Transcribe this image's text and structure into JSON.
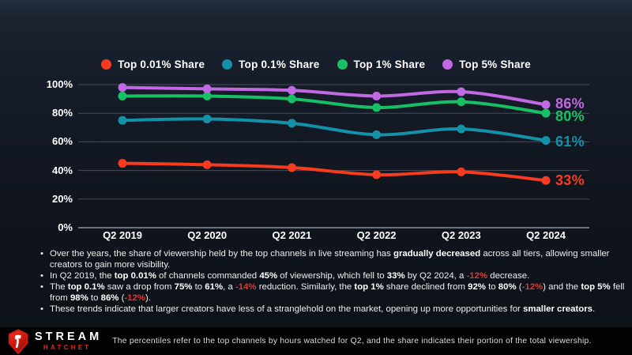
{
  "colors": {
    "grid": "#454d59",
    "axis_bottom": "#8a9099",
    "note_red": "#e8352b",
    "logo_red": "#e8281e",
    "background_top": "#232c3b",
    "background_bottom": "#0c1017",
    "footer_bar": "#020202"
  },
  "chart_data": {
    "type": "line",
    "x": [
      "Q2 2019",
      "Q2 2020",
      "Q2 2021",
      "Q2 2022",
      "Q2 2023",
      "Q2 2024"
    ],
    "series": [
      {
        "name": "Top 0.01% Share",
        "color": "#f63b1f",
        "values": [
          45,
          44,
          42,
          37,
          39,
          33
        ],
        "end_label": "33%",
        "label_dy": 0
      },
      {
        "name": "Top 0.1% Share",
        "color": "#1391a9",
        "values": [
          75,
          76,
          73,
          65,
          69,
          61
        ],
        "end_label": "61%",
        "label_dy": 1
      },
      {
        "name": "Top 1% Share",
        "color": "#17c064",
        "values": [
          92,
          92,
          90,
          84,
          88,
          80
        ],
        "end_label": "80%",
        "label_dy": 4
      },
      {
        "name": "Top 5% Share",
        "color": "#c169e3",
        "values": [
          98,
          97,
          96,
          92,
          95,
          86
        ],
        "end_label": "86%",
        "label_dy": -1
      }
    ],
    "ylim": [
      0,
      100
    ],
    "yticks": [
      0,
      20,
      40,
      60,
      80,
      100
    ],
    "ytick_suffix": "%",
    "grid": true,
    "legend_position": "top"
  },
  "notes": [
    {
      "segments": [
        {
          "t": "Over the years, the share of viewership held by the top channels in live streaming has "
        },
        {
          "t": "gradually decreased",
          "b": true
        },
        {
          "t": " across all tiers, allowing smaller creators to gain more visibility."
        }
      ]
    },
    {
      "segments": [
        {
          "t": "In Q2 2019, the "
        },
        {
          "t": "top 0.01%",
          "b": true
        },
        {
          "t": " of channels commanded "
        },
        {
          "t": "45%",
          "b": true
        },
        {
          "t": " of viewership, which fell to "
        },
        {
          "t": "33%",
          "b": true
        },
        {
          "t": " by Q2 2024, a "
        },
        {
          "t": "-12%",
          "r": true
        },
        {
          "t": " decrease."
        }
      ]
    },
    {
      "segments": [
        {
          "t": "The "
        },
        {
          "t": "top 0.1%",
          "b": true
        },
        {
          "t": " saw a drop from "
        },
        {
          "t": "75%",
          "b": true
        },
        {
          "t": " to "
        },
        {
          "t": "61%",
          "b": true
        },
        {
          "t": ", a "
        },
        {
          "t": "-14%",
          "r": true
        },
        {
          "t": " reduction. Similarly, the "
        },
        {
          "t": "top 1%",
          "b": true
        },
        {
          "t": " share declined from "
        },
        {
          "t": "92%",
          "b": true
        },
        {
          "t": " to "
        },
        {
          "t": "80%",
          "b": true
        },
        {
          "t": " ("
        },
        {
          "t": "-12%",
          "r": true
        },
        {
          "t": ") and the "
        },
        {
          "t": "top 5%",
          "b": true
        },
        {
          "t": " fell from "
        },
        {
          "t": "98%",
          "b": true
        },
        {
          "t": " to "
        },
        {
          "t": "86%",
          "b": true
        },
        {
          "t": " ("
        },
        {
          "t": "-12%",
          "r": true
        },
        {
          "t": ")."
        }
      ]
    },
    {
      "segments": [
        {
          "t": "These trends indicate that larger creators have less of a stranglehold on the market, opening up more opportunities for "
        },
        {
          "t": "smaller creators",
          "b": true
        },
        {
          "t": "."
        }
      ]
    }
  ],
  "logo": {
    "top": "STREAM",
    "bottom": "HATCHET"
  },
  "footer": {
    "note": "The percentiles refer to the top channels by hours watched for Q2, and the share indicates their portion of the total viewership."
  }
}
